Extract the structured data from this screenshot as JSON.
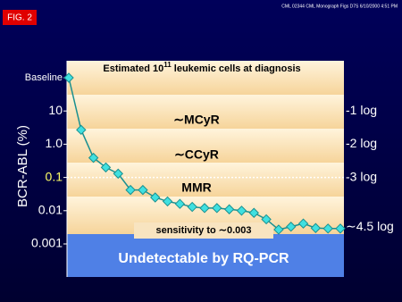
{
  "chart_data": {
    "type": "line",
    "stamp": "CML 02344 CML Monograph Figs D7S 6/10/2000 4:51 PM",
    "figure_label": "FIG. 2",
    "header": {
      "before": "Estimated 10",
      "sup": "11",
      "after": " leukemic cells at diagnosis"
    },
    "y_label": "BCR-ABL (%)",
    "annotations": [
      "∼MCyR",
      "∼CCyR",
      "MMR",
      "sensitivity to ∼0.003",
      "Undetectable by RQ-PCR"
    ],
    "log_y": true,
    "ylim": [
      0.001,
      100
    ],
    "yticks": [
      {
        "value": 100,
        "label": "Baseline"
      },
      10,
      {
        "value": 1,
        "label": "1.0"
      },
      0.1,
      0.01,
      0.001
    ],
    "ytick_colors": [
      "#ffffff",
      "#ffffff",
      "#ffffff",
      "#ffff66",
      "#ffffff",
      "#ffffff"
    ],
    "y2ticks": [
      {
        "value": 10,
        "label": "-1 log"
      },
      {
        "value": 1,
        "label": "-2 log"
      },
      {
        "value": 0.1,
        "label": "-3 log"
      },
      {
        "value": 0.00316,
        "label": "∼4.5 log"
      }
    ],
    "categories": [
      null,
      null,
      null,
      null,
      null,
      null,
      null,
      null,
      null,
      null,
      null,
      null,
      null,
      null,
      null,
      null,
      null,
      null,
      null,
      null,
      null,
      null,
      null
    ],
    "series": [
      {
        "color": "#1a9090",
        "marker_color": "#40e0e0",
        "values": [
          100,
          2.7,
          0.39,
          0.2,
          0.13,
          0.042,
          0.042,
          0.025,
          0.019,
          0.016,
          0.013,
          0.012,
          0.012,
          0.011,
          0.01,
          0.0086,
          0.0055,
          0.0027,
          0.0033,
          0.0041,
          0.003,
          0.0029,
          0.0029
        ]
      }
    ]
  }
}
